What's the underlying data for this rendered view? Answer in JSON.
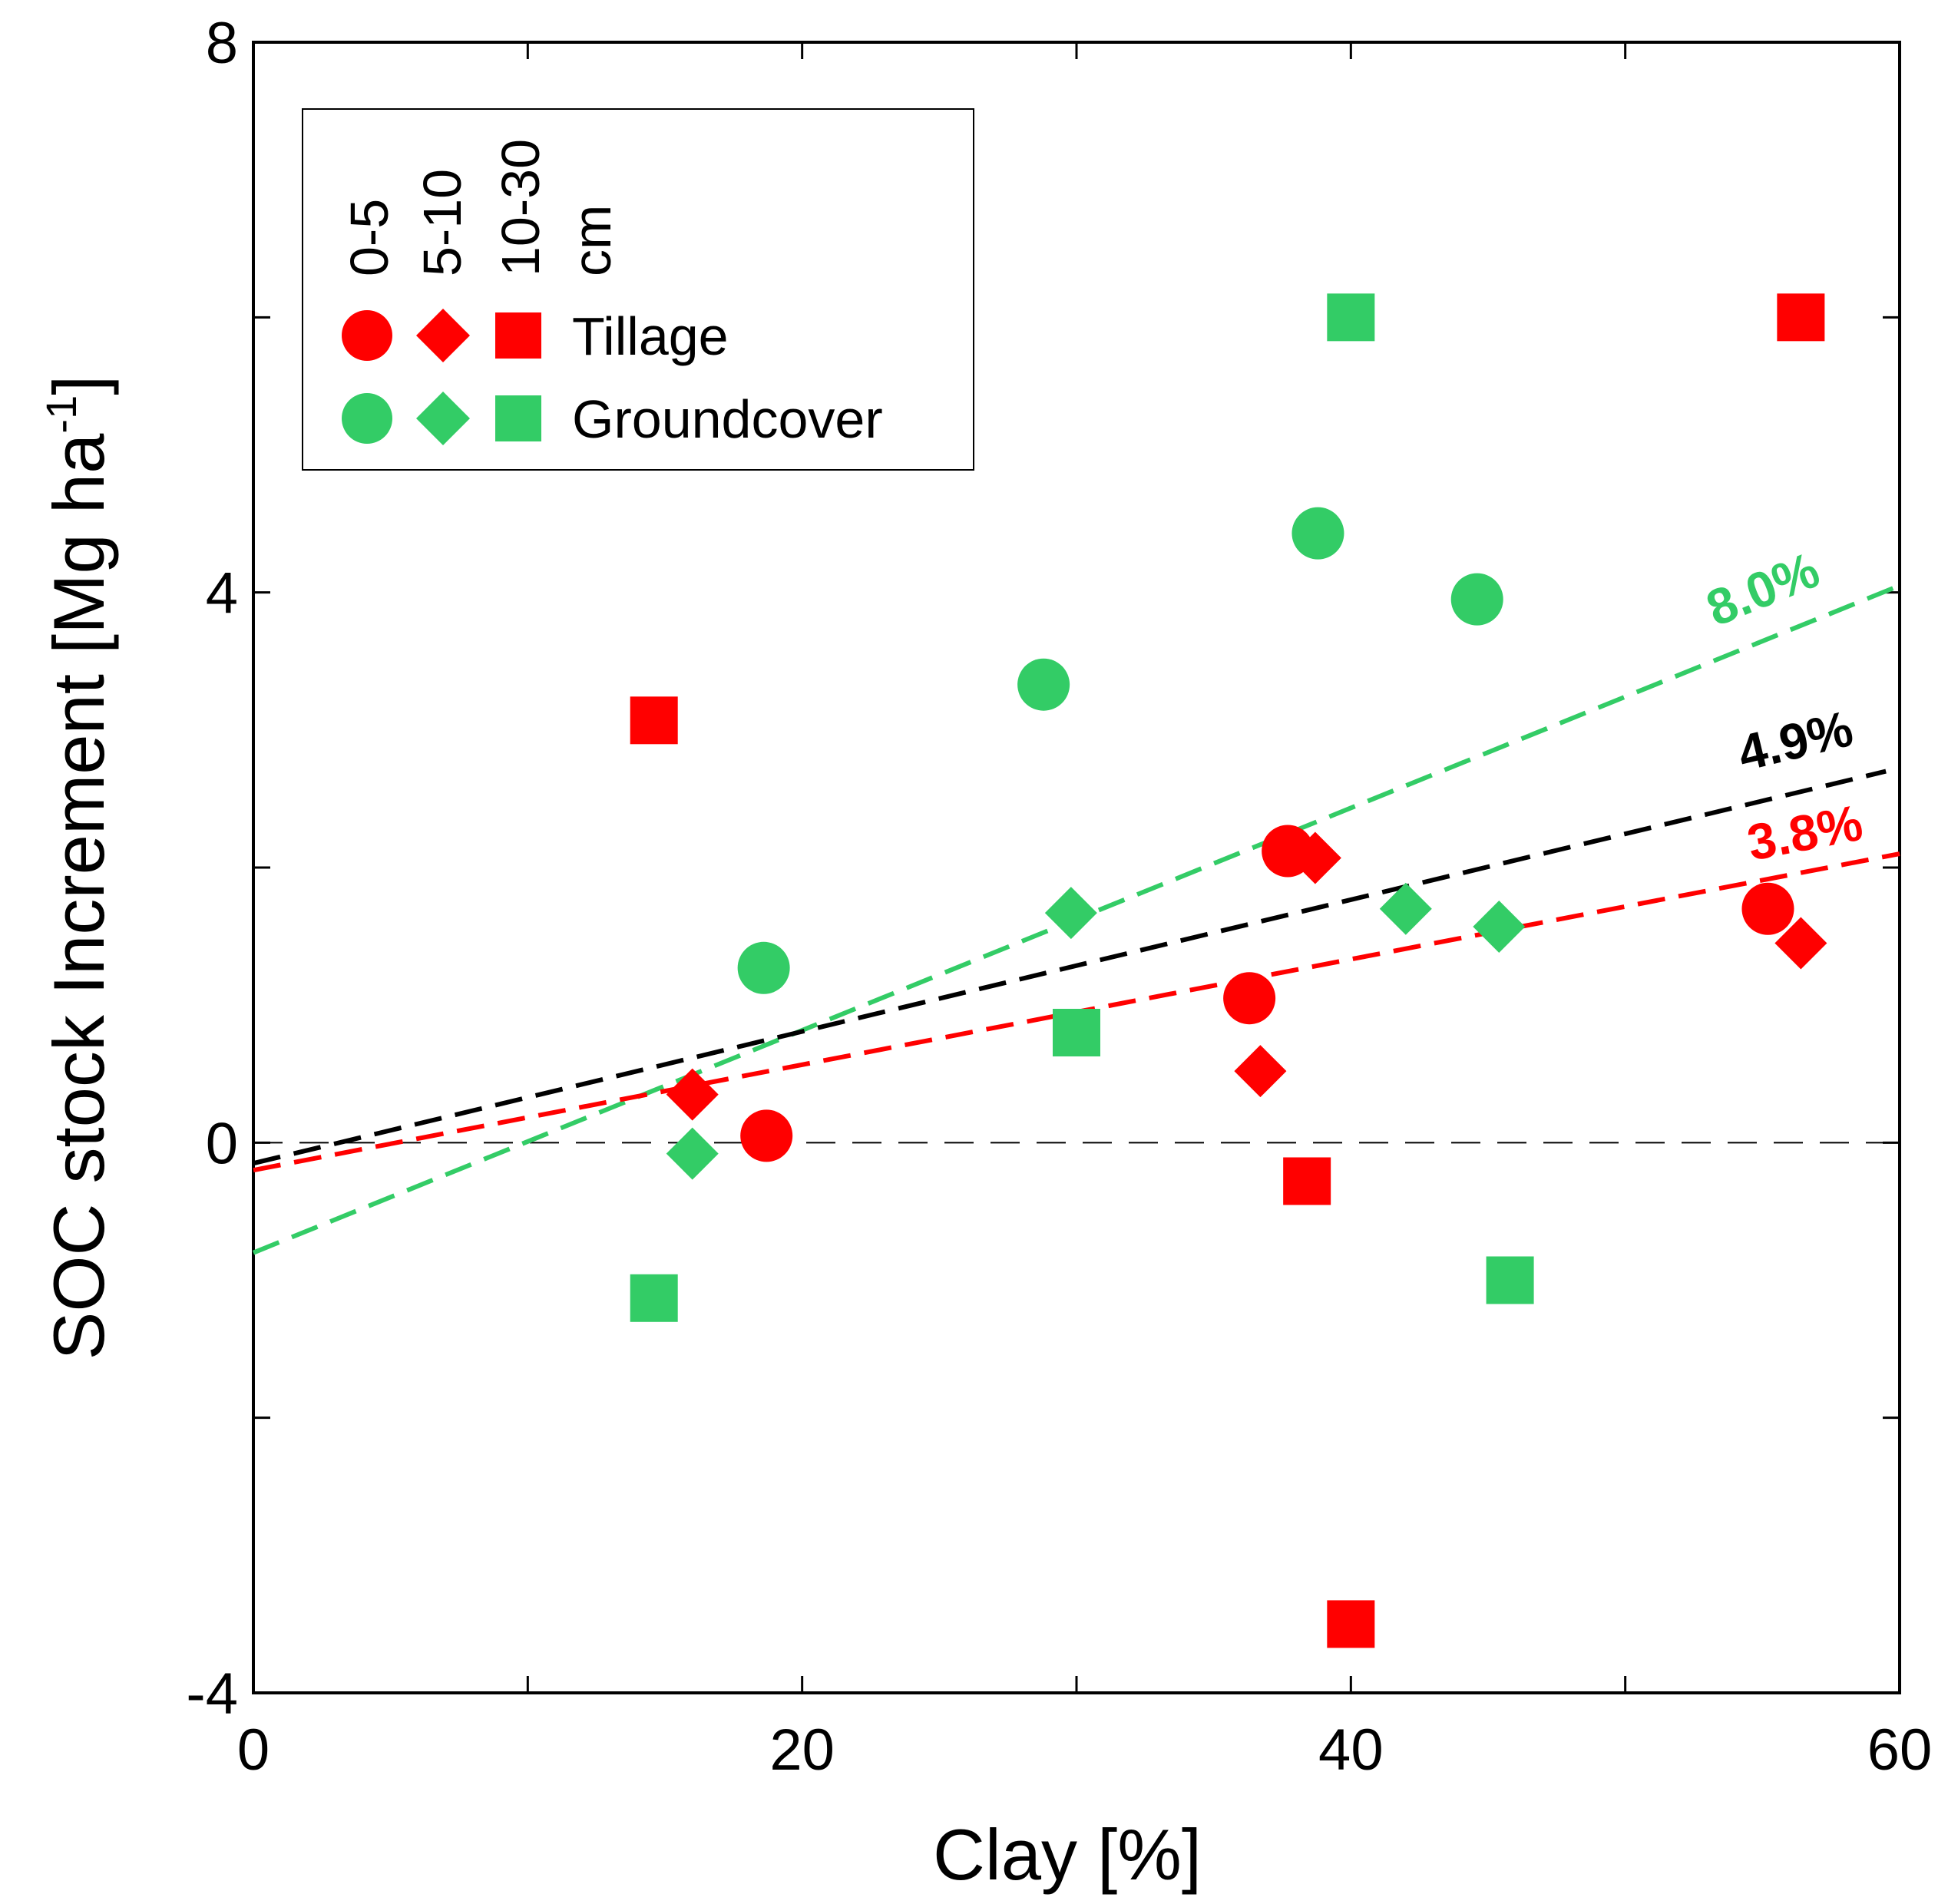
{
  "chart_data": {
    "type": "scatter",
    "title": "",
    "xlabel": "Clay [%]",
    "ylabel": "SOC stock Increment [Mg ha",
    "ylabel_sup": "-1",
    "ylabel_end": "]",
    "xlim": [
      0,
      60
    ],
    "ylim": [
      -4,
      8
    ],
    "xticks": [
      0,
      20,
      40,
      60
    ],
    "yticks": [
      -4,
      0,
      4,
      8
    ],
    "xticklabels": [
      "0",
      "20",
      "40",
      "60"
    ],
    "yticklabels": [
      "-4",
      "0",
      "4",
      "8"
    ],
    "grid": false,
    "legend_position": "top-left",
    "legend": {
      "depth_headers": [
        "0-5",
        "5-10",
        "10-30",
        "cm"
      ],
      "rows": [
        {
          "label": "Tillage",
          "color": "#ff0000"
        },
        {
          "label": "Groundcover",
          "color": "#33cc66"
        }
      ]
    },
    "series": [
      {
        "name": "Tillage 0-5 cm",
        "group": "Tillage",
        "marker": "circle",
        "color": "#ff0000",
        "points": [
          [
            18.7,
            0.05
          ],
          [
            36.3,
            1.05
          ],
          [
            37.7,
            2.12
          ],
          [
            55.2,
            1.7
          ]
        ]
      },
      {
        "name": "Tillage 5-10 cm",
        "group": "Tillage",
        "marker": "diamond",
        "color": "#ff0000",
        "points": [
          [
            16.0,
            0.35
          ],
          [
            36.7,
            0.52
          ],
          [
            38.7,
            2.07
          ],
          [
            56.4,
            1.45
          ]
        ]
      },
      {
        "name": "Tillage 10-30 cm",
        "group": "Tillage",
        "marker": "square",
        "color": "#ff0000",
        "points": [
          [
            14.6,
            3.07
          ],
          [
            38.4,
            -0.28
          ],
          [
            40.0,
            -3.5
          ],
          [
            56.4,
            6.0
          ]
        ]
      },
      {
        "name": "Groundcover 0-5 cm",
        "group": "Groundcover",
        "marker": "circle",
        "color": "#33cc66",
        "points": [
          [
            18.6,
            1.27
          ],
          [
            28.8,
            3.33
          ],
          [
            38.8,
            4.43
          ],
          [
            44.6,
            3.95
          ]
        ]
      },
      {
        "name": "Groundcover 5-10 cm",
        "group": "Groundcover",
        "marker": "diamond",
        "color": "#33cc66",
        "points": [
          [
            16.0,
            -0.08
          ],
          [
            29.8,
            1.67
          ],
          [
            42.0,
            1.7
          ],
          [
            45.4,
            1.57
          ]
        ]
      },
      {
        "name": "Groundcover 10-30 cm",
        "group": "Groundcover",
        "marker": "square",
        "color": "#33cc66",
        "points": [
          [
            14.6,
            -1.13
          ],
          [
            30.0,
            0.8
          ],
          [
            40.0,
            6.0
          ],
          [
            45.8,
            -1.0
          ]
        ]
      }
    ],
    "zero_line": {
      "y": 0,
      "style": "dashed",
      "color": "#000000"
    },
    "trend_lines": [
      {
        "name": "Groundcover trend",
        "color": "#33cc66",
        "x": [
          0,
          60
        ],
        "y": [
          -0.8,
          4.05
        ],
        "label": "8.0%",
        "label_at": [
          53.3,
          3.75
        ]
      },
      {
        "name": "All trend",
        "color": "#000000",
        "x": [
          0,
          59.5
        ],
        "y": [
          -0.15,
          2.7
        ],
        "label": "4.9%",
        "label_at": [
          54.3,
          2.7
        ]
      },
      {
        "name": "Tillage trend",
        "color": "#ff0000",
        "x": [
          0,
          60
        ],
        "y": [
          -0.2,
          2.1
        ],
        "label": "3.8%",
        "label_at": [
          54.6,
          2.05
        ]
      }
    ]
  }
}
